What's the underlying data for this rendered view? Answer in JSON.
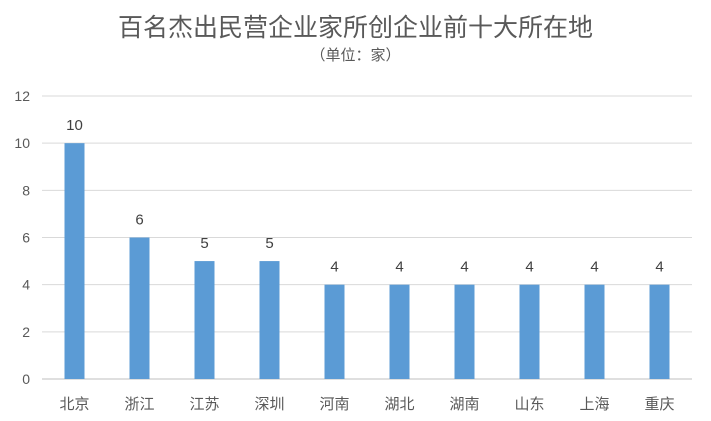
{
  "chart_data": {
    "type": "bar",
    "title": "百名杰出民营企业家所创企业前十大所在地",
    "subtitle": "（单位：家）",
    "categories": [
      "北京",
      "浙江",
      "江苏",
      "深圳",
      "河南",
      "湖北",
      "湖南",
      "山东",
      "上海",
      "重庆"
    ],
    "values": [
      10,
      6,
      5,
      5,
      4,
      4,
      4,
      4,
      4,
      4
    ],
    "ylim": [
      0,
      12
    ],
    "yticks": [
      0,
      2,
      4,
      6,
      8,
      10,
      12
    ],
    "grid": true,
    "bar_color": "#5b9bd5",
    "data_labels": true
  }
}
